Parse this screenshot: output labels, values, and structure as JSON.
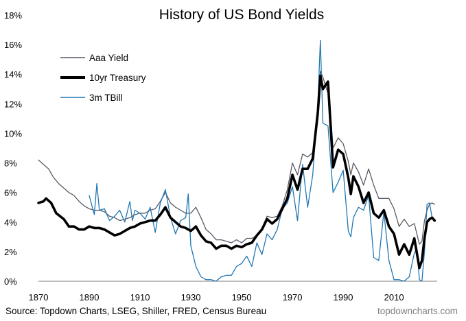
{
  "chart_data": {
    "type": "line",
    "title": "History of US Bond Yields",
    "xlabel": "",
    "ylabel": "",
    "xlim": [
      1870,
      2027
    ],
    "ylim": [
      0,
      18
    ],
    "x_ticks": [
      1870,
      1890,
      1910,
      1930,
      1950,
      1970,
      1990,
      2010
    ],
    "y_ticks": [
      {
        "value": 0,
        "label": "0%"
      },
      {
        "value": 2,
        "label": "2%"
      },
      {
        "value": 4,
        "label": "4%"
      },
      {
        "value": 6,
        "label": "6%"
      },
      {
        "value": 8,
        "label": "8%"
      },
      {
        "value": 10,
        "label": "10%"
      },
      {
        "value": 12,
        "label": "12%"
      },
      {
        "value": 14,
        "label": "14%"
      },
      {
        "value": 16,
        "label": "16%"
      },
      {
        "value": 18,
        "label": "18%"
      }
    ],
    "grid": false,
    "legend_position": "top-left",
    "series": [
      {
        "name": "Aaa Yield",
        "color": "#595966",
        "style": "thin",
        "points": [
          [
            1870,
            8.2
          ],
          [
            1872,
            7.9
          ],
          [
            1874,
            7.6
          ],
          [
            1876,
            7.0
          ],
          [
            1878,
            6.6
          ],
          [
            1880,
            6.3
          ],
          [
            1882,
            6.0
          ],
          [
            1884,
            5.8
          ],
          [
            1886,
            5.4
          ],
          [
            1888,
            5.1
          ],
          [
            1890,
            4.9
          ],
          [
            1892,
            4.8
          ],
          [
            1894,
            4.8
          ],
          [
            1896,
            4.7
          ],
          [
            1898,
            4.4
          ],
          [
            1900,
            4.3
          ],
          [
            1902,
            4.1
          ],
          [
            1904,
            4.2
          ],
          [
            1906,
            4.3
          ],
          [
            1908,
            4.5
          ],
          [
            1910,
            4.6
          ],
          [
            1912,
            4.6
          ],
          [
            1914,
            4.8
          ],
          [
            1916,
            4.9
          ],
          [
            1918,
            5.4
          ],
          [
            1920,
            6.0
          ],
          [
            1922,
            5.3
          ],
          [
            1924,
            5.0
          ],
          [
            1926,
            4.8
          ],
          [
            1928,
            4.6
          ],
          [
            1930,
            4.6
          ],
          [
            1932,
            5.0
          ],
          [
            1934,
            4.3
          ],
          [
            1936,
            3.5
          ],
          [
            1938,
            3.2
          ],
          [
            1940,
            2.8
          ],
          [
            1942,
            2.8
          ],
          [
            1944,
            2.7
          ],
          [
            1946,
            2.6
          ],
          [
            1948,
            2.8
          ],
          [
            1950,
            2.6
          ],
          [
            1952,
            2.9
          ],
          [
            1954,
            2.9
          ],
          [
            1956,
            3.1
          ],
          [
            1958,
            3.6
          ],
          [
            1960,
            4.4
          ],
          [
            1962,
            4.3
          ],
          [
            1964,
            4.4
          ],
          [
            1966,
            5.1
          ],
          [
            1968,
            6.2
          ],
          [
            1970,
            8.0
          ],
          [
            1972,
            7.2
          ],
          [
            1974,
            8.6
          ],
          [
            1976,
            8.4
          ],
          [
            1978,
            8.7
          ],
          [
            1980,
            11.9
          ],
          [
            1981,
            14.2
          ],
          [
            1982,
            13.8
          ],
          [
            1984,
            12.7
          ],
          [
            1985,
            11.4
          ],
          [
            1986,
            9.0
          ],
          [
            1988,
            9.7
          ],
          [
            1990,
            9.3
          ],
          [
            1992,
            8.1
          ],
          [
            1993,
            7.2
          ],
          [
            1994,
            8.0
          ],
          [
            1996,
            7.4
          ],
          [
            1998,
            6.5
          ],
          [
            2000,
            7.6
          ],
          [
            2002,
            6.5
          ],
          [
            2004,
            5.6
          ],
          [
            2006,
            5.6
          ],
          [
            2008,
            5.6
          ],
          [
            2010,
            4.9
          ],
          [
            2012,
            3.7
          ],
          [
            2014,
            4.2
          ],
          [
            2016,
            3.7
          ],
          [
            2018,
            3.9
          ],
          [
            2020,
            2.5
          ],
          [
            2021,
            2.7
          ],
          [
            2022,
            4.1
          ],
          [
            2023,
            4.8
          ],
          [
            2024,
            5.2
          ],
          [
            2025,
            5.3
          ],
          [
            2026,
            5.2
          ]
        ]
      },
      {
        "name": "10yr Treasury",
        "color": "#000000",
        "style": "thick",
        "points": [
          [
            1870,
            5.3
          ],
          [
            1872,
            5.4
          ],
          [
            1873,
            5.6
          ],
          [
            1875,
            5.3
          ],
          [
            1877,
            4.6
          ],
          [
            1880,
            4.2
          ],
          [
            1882,
            3.7
          ],
          [
            1884,
            3.7
          ],
          [
            1886,
            3.5
          ],
          [
            1888,
            3.5
          ],
          [
            1890,
            3.7
          ],
          [
            1892,
            3.6
          ],
          [
            1894,
            3.6
          ],
          [
            1896,
            3.5
          ],
          [
            1898,
            3.3
          ],
          [
            1900,
            3.1
          ],
          [
            1902,
            3.2
          ],
          [
            1904,
            3.4
          ],
          [
            1906,
            3.6
          ],
          [
            1908,
            3.7
          ],
          [
            1910,
            3.9
          ],
          [
            1912,
            4.0
          ],
          [
            1914,
            4.1
          ],
          [
            1916,
            4.1
          ],
          [
            1918,
            4.5
          ],
          [
            1920,
            5.0
          ],
          [
            1922,
            4.3
          ],
          [
            1924,
            4.0
          ],
          [
            1926,
            3.7
          ],
          [
            1928,
            3.6
          ],
          [
            1930,
            3.4
          ],
          [
            1932,
            3.7
          ],
          [
            1934,
            3.1
          ],
          [
            1936,
            2.7
          ],
          [
            1938,
            2.6
          ],
          [
            1940,
            2.2
          ],
          [
            1942,
            2.4
          ],
          [
            1944,
            2.4
          ],
          [
            1946,
            2.2
          ],
          [
            1948,
            2.4
          ],
          [
            1950,
            2.3
          ],
          [
            1952,
            2.5
          ],
          [
            1954,
            2.6
          ],
          [
            1956,
            3.1
          ],
          [
            1958,
            3.5
          ],
          [
            1960,
            4.2
          ],
          [
            1962,
            3.9
          ],
          [
            1964,
            4.2
          ],
          [
            1966,
            4.9
          ],
          [
            1968,
            5.6
          ],
          [
            1970,
            7.2
          ],
          [
            1972,
            6.2
          ],
          [
            1974,
            7.6
          ],
          [
            1976,
            7.6
          ],
          [
            1978,
            8.3
          ],
          [
            1980,
            11.4
          ],
          [
            1981,
            13.9
          ],
          [
            1982,
            13.0
          ],
          [
            1984,
            13.5
          ],
          [
            1985,
            10.6
          ],
          [
            1986,
            7.7
          ],
          [
            1988,
            8.9
          ],
          [
            1990,
            8.6
          ],
          [
            1992,
            7.0
          ],
          [
            1993,
            5.9
          ],
          [
            1994,
            7.1
          ],
          [
            1996,
            6.4
          ],
          [
            1998,
            5.3
          ],
          [
            2000,
            6.0
          ],
          [
            2002,
            4.6
          ],
          [
            2004,
            4.3
          ],
          [
            2006,
            4.8
          ],
          [
            2008,
            3.7
          ],
          [
            2010,
            3.2
          ],
          [
            2012,
            1.8
          ],
          [
            2014,
            2.5
          ],
          [
            2016,
            1.8
          ],
          [
            2018,
            2.9
          ],
          [
            2020,
            0.9
          ],
          [
            2021,
            1.4
          ],
          [
            2022,
            2.9
          ],
          [
            2023,
            4.0
          ],
          [
            2024,
            4.2
          ],
          [
            2025,
            4.3
          ],
          [
            2026,
            4.1
          ]
        ]
      },
      {
        "name": "3m TBill",
        "color": "#1f77b4",
        "style": "thin",
        "points": [
          [
            1890,
            5.8
          ],
          [
            1892,
            4.5
          ],
          [
            1893,
            6.6
          ],
          [
            1894,
            4.8
          ],
          [
            1896,
            4.9
          ],
          [
            1898,
            4.1
          ],
          [
            1900,
            4.4
          ],
          [
            1902,
            4.8
          ],
          [
            1904,
            4.0
          ],
          [
            1906,
            5.4
          ],
          [
            1907,
            4.1
          ],
          [
            1908,
            4.8
          ],
          [
            1910,
            4.6
          ],
          [
            1912,
            4.2
          ],
          [
            1914,
            5.0
          ],
          [
            1916,
            3.3
          ],
          [
            1918,
            5.3
          ],
          [
            1920,
            6.2
          ],
          [
            1922,
            4.3
          ],
          [
            1924,
            3.2
          ],
          [
            1926,
            4.1
          ],
          [
            1928,
            4.3
          ],
          [
            1929,
            5.9
          ],
          [
            1930,
            2.4
          ],
          [
            1932,
            1.0
          ],
          [
            1934,
            0.3
          ],
          [
            1936,
            0.1
          ],
          [
            1938,
            0.1
          ],
          [
            1940,
            0.0
          ],
          [
            1942,
            0.3
          ],
          [
            1944,
            0.4
          ],
          [
            1946,
            0.4
          ],
          [
            1948,
            1.0
          ],
          [
            1950,
            1.2
          ],
          [
            1952,
            1.7
          ],
          [
            1954,
            1.0
          ],
          [
            1956,
            2.6
          ],
          [
            1958,
            1.8
          ],
          [
            1960,
            3.2
          ],
          [
            1962,
            2.8
          ],
          [
            1964,
            3.5
          ],
          [
            1966,
            4.9
          ],
          [
            1968,
            5.3
          ],
          [
            1970,
            6.4
          ],
          [
            1972,
            4.1
          ],
          [
            1974,
            7.9
          ],
          [
            1976,
            5.0
          ],
          [
            1978,
            7.2
          ],
          [
            1980,
            12.0
          ],
          [
            1981,
            16.3
          ],
          [
            1982,
            10.7
          ],
          [
            1984,
            10.5
          ],
          [
            1986,
            6.0
          ],
          [
            1988,
            6.7
          ],
          [
            1990,
            7.5
          ],
          [
            1992,
            3.4
          ],
          [
            1993,
            3.0
          ],
          [
            1994,
            4.3
          ],
          [
            1996,
            5.0
          ],
          [
            1998,
            4.8
          ],
          [
            2000,
            5.8
          ],
          [
            2002,
            1.6
          ],
          [
            2004,
            1.4
          ],
          [
            2006,
            4.7
          ],
          [
            2008,
            1.4
          ],
          [
            2010,
            0.1
          ],
          [
            2012,
            0.1
          ],
          [
            2014,
            0.0
          ],
          [
            2016,
            0.3
          ],
          [
            2018,
            1.9
          ],
          [
            2019,
            2.2
          ],
          [
            2020,
            0.1
          ],
          [
            2021,
            0.0
          ],
          [
            2022,
            2.0
          ],
          [
            2023,
            5.2
          ],
          [
            2024,
            5.3
          ],
          [
            2025,
            4.3
          ],
          [
            2026,
            4.2
          ]
        ]
      }
    ]
  },
  "footer": {
    "source": "Source: Topdown Charts, LSEG, Shiller, FRED, Census Bureau",
    "brand": "topdowncharts.com"
  }
}
